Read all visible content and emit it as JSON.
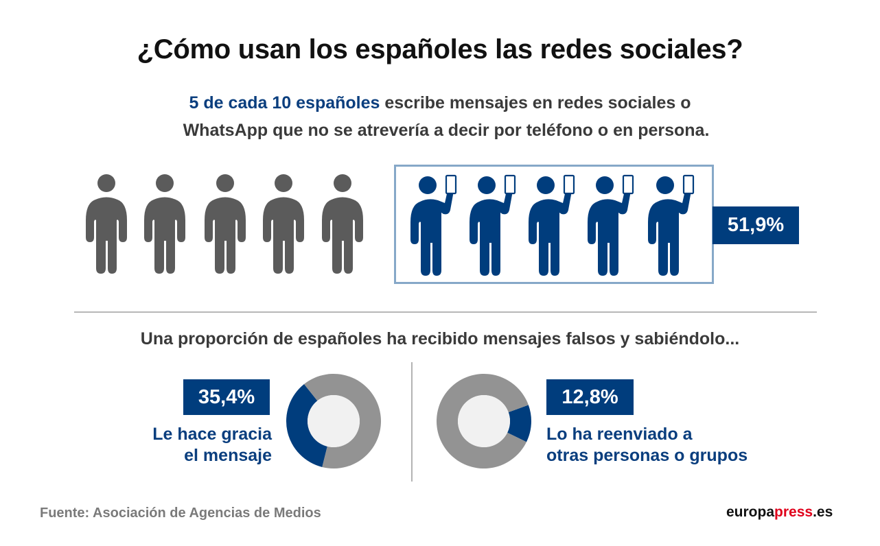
{
  "title": "¿Cómo usan los españoles las redes sociales?",
  "subtitle": {
    "highlight": "5 de cada 10 españoles",
    "line1_rest": " escribe mensajes en redes sociales o",
    "line2": "WhatsApp que no se atrevería a decir por teléfono o en persona."
  },
  "pictogram": {
    "total_figures": 10,
    "highlighted_figures": 5,
    "value_label": "51,9%",
    "icon_plain": "person-icon",
    "icon_highlighted": "person-with-phone-icon"
  },
  "section2_title": "Una proporción de españoles ha recibido mensajes falsos y sabiéndolo...",
  "colors": {
    "accent": "#003d7d",
    "gray_figure": "#5b5b5b",
    "donut_rest": "#939393",
    "donut_hole": "#f1f1f1",
    "frame": "#86a8c8",
    "brand_red": "#e0001b"
  },
  "chart_data": [
    {
      "type": "pie",
      "title": "Le hace gracia el mensaje",
      "value_label": "35,4%",
      "slices": [
        {
          "name": "Le hace gracia el mensaje",
          "value": 35.4
        },
        {
          "name": "Resto",
          "value": 64.6
        }
      ]
    },
    {
      "type": "pie",
      "title": "Lo ha reenviado a otras personas o grupos",
      "value_label": "12,8%",
      "slices": [
        {
          "name": "Lo ha reenviado a otras personas o grupos",
          "value": 12.8
        },
        {
          "name": "Resto",
          "value": 87.2
        }
      ]
    }
  ],
  "donut1": {
    "value_label": "35,4%",
    "label_line1": "Le hace gracia",
    "label_line2": "el mensaje"
  },
  "donut2": {
    "value_label": "12,8%",
    "label_line1": "Lo ha reenviado a",
    "label_line2": "otras personas o grupos"
  },
  "footer": {
    "source": "Fuente: Asociación de Agencias de Medios",
    "brand_part1": "europa",
    "brand_part2": "press",
    "brand_part3": ".es"
  }
}
